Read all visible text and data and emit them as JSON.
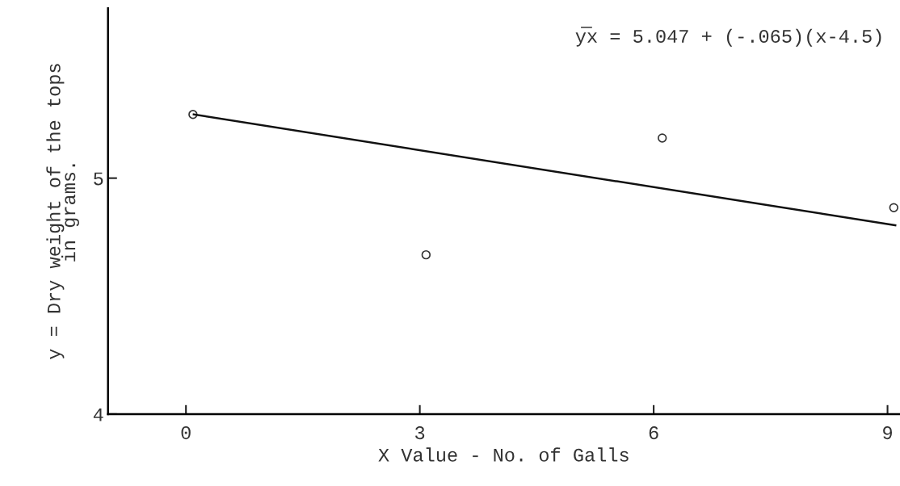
{
  "chart_data": {
    "type": "scatter",
    "xlabel": "X Value - No. of Galls",
    "ylabel": "y = Dry weight of the tops\nin grams.",
    "annotations": [
      "y̅x = 5.047 + (-.065)(x-4.5)"
    ],
    "series": [
      {
        "color": "#333333",
        "x": [
          0.09,
          3.08,
          6.11,
          9.08
        ],
        "values": [
          5.27,
          4.675,
          5.17,
          4.875
        ],
        "marker": "circle"
      },
      {
        "type": "line",
        "color": "#111111",
        "x": [
          0.1,
          9.1
        ],
        "values": [
          5.27,
          4.8
        ],
        "line_style": "solid"
      }
    ],
    "xlim": [
      -1,
      9.16
    ],
    "ylim": [
      4,
      5.72
    ],
    "xticks": [
      0,
      3,
      6,
      9
    ],
    "yticks": [
      4,
      5
    ],
    "grid": false,
    "legend": false
  }
}
